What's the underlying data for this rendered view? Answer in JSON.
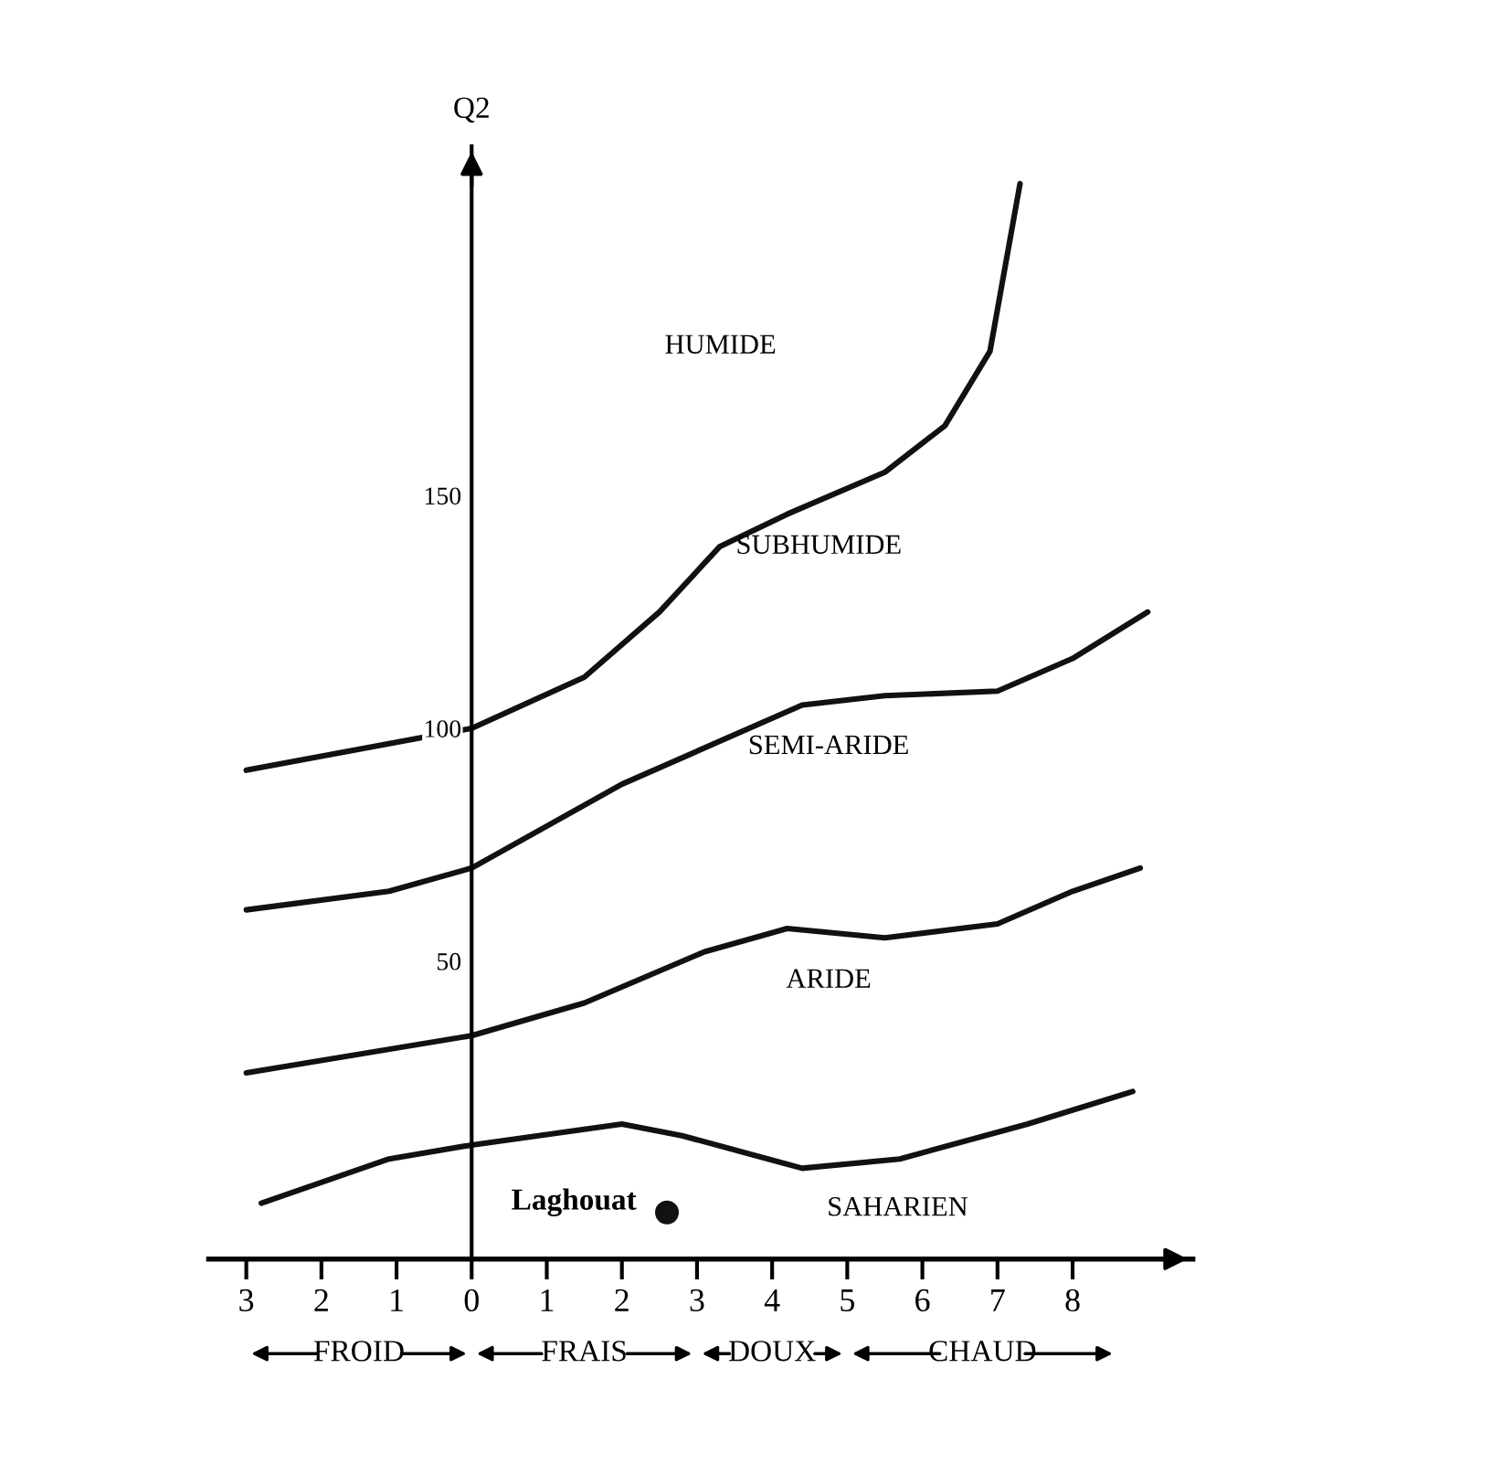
{
  "chart_data": {
    "type": "line",
    "ylabel": "Q2",
    "xlim": [
      -3.5,
      9.6
    ],
    "ylim": [
      -14,
      225
    ],
    "xticks": [
      {
        "value": -3,
        "label": "3"
      },
      {
        "value": -2,
        "label": "2"
      },
      {
        "value": -1,
        "label": "1"
      },
      0,
      1,
      2,
      3,
      4,
      5,
      6,
      7,
      8
    ],
    "yticks": [
      50,
      100,
      150
    ],
    "grid": false,
    "line_style": "solid",
    "series": [
      {
        "color": "#111111",
        "x": [
          -3,
          0,
          1.5,
          2.5,
          3.3,
          4.2,
          5.5,
          6.3,
          6.9,
          7.3
        ],
        "values": [
          91,
          100,
          111,
          125,
          139,
          146,
          155,
          165,
          181,
          217
        ]
      },
      {
        "color": "#111111",
        "x": [
          -3,
          -1.1,
          0,
          2,
          4.4,
          5.5,
          7,
          8,
          9
        ],
        "values": [
          61,
          65,
          70,
          88,
          105,
          107,
          108,
          115,
          125
        ]
      },
      {
        "color": "#111111",
        "x": [
          -3,
          0,
          1.5,
          3.1,
          4.2,
          5.5,
          7,
          8,
          8.9
        ],
        "values": [
          26,
          34,
          41,
          52,
          57,
          55,
          58,
          65,
          70
        ]
      },
      {
        "color": "#111111",
        "x": [
          -2.8,
          -1.1,
          0,
          2,
          2.8,
          4.4,
          5.7,
          7.4,
          8.8
        ],
        "values": [
          -2,
          7.5,
          10.5,
          15,
          12.5,
          5.5,
          7.5,
          15,
          22
        ]
      },
      {
        "type": "scatter",
        "name": "Laghouat",
        "color": "#111111",
        "x": [
          2.6
        ],
        "values": [
          -4
        ]
      }
    ],
    "annotations": [
      "HUMIDE",
      "SUBHUMIDE",
      "SEMI-ARIDE",
      "ARIDE",
      "SAHARIEN",
      "FROID",
      "FRAIS",
      "DOUX",
      "CHAUD"
    ]
  }
}
